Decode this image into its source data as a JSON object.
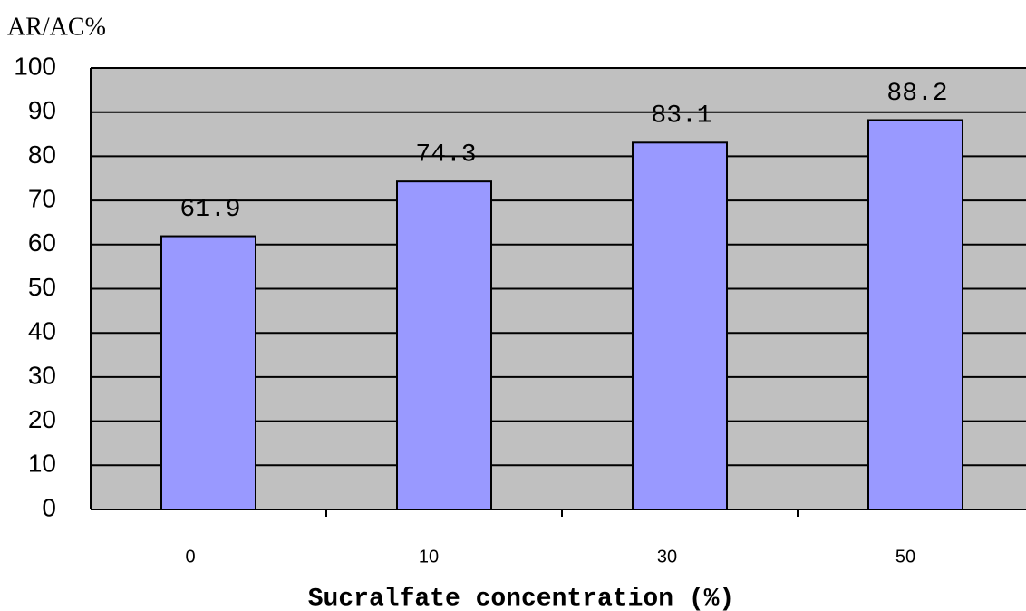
{
  "chart_data": {
    "type": "bar",
    "y_label": "AR/AC%",
    "x_label": "Sucralfate concentration (%)",
    "categories": [
      "0",
      "10",
      "30",
      "50"
    ],
    "values": [
      61.9,
      74.3,
      83.1,
      88.2
    ],
    "color": "#9999ff",
    "ylim": [
      0,
      100
    ],
    "yticks": [
      0,
      10,
      20,
      30,
      40,
      50,
      60,
      70,
      80,
      90,
      100
    ],
    "grid": true
  }
}
